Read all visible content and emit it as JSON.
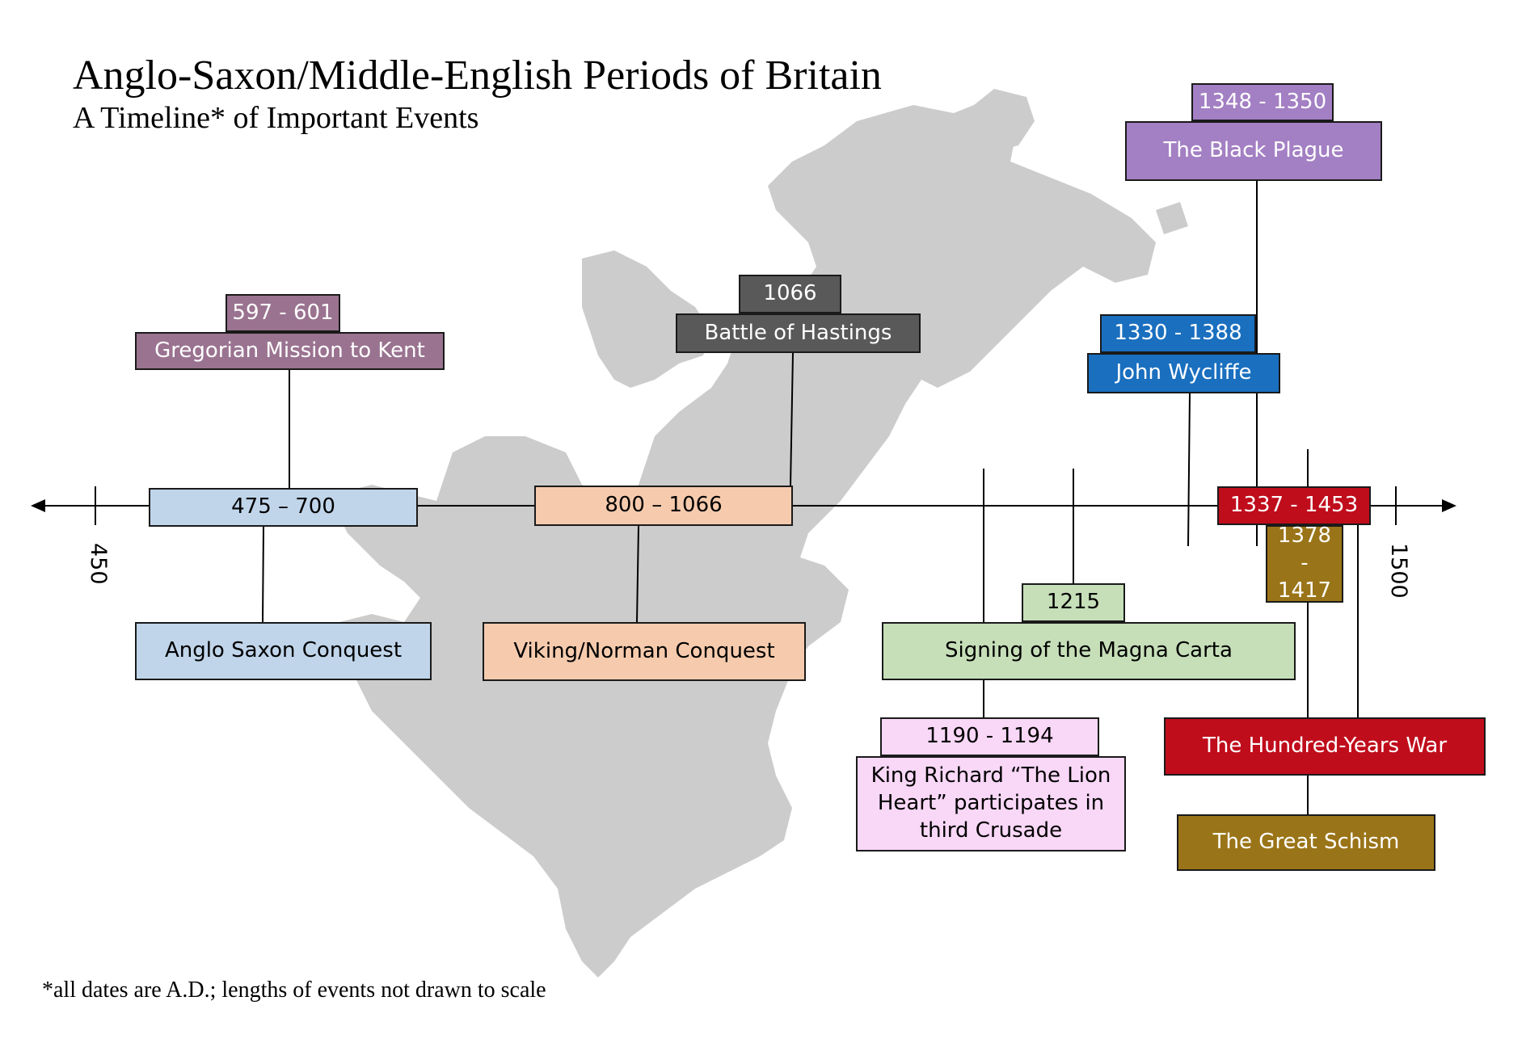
{
  "title": "Anglo-Saxon/Middle-English Periods of Britain",
  "subtitle": "A Timeline* of Important Events",
  "footnote": "*all dates are A.D.; lengths of events not drawn to scale",
  "axis": {
    "start_label": "450",
    "end_label": "1500"
  },
  "events": {
    "anglo_saxon_period": "475 – 700",
    "anglo_saxon_conquest": "Anglo Saxon Conquest",
    "gregorian_dates": "597 - 601",
    "gregorian_mission": "Gregorian Mission to Kent",
    "viking_period": "800 – 1066",
    "viking_conquest": "Viking/Norman Conquest",
    "hastings_date": "1066",
    "hastings": "Battle of Hastings",
    "magna_carta_date": "1215",
    "magna_carta": "Signing of the Magna Carta",
    "richard_dates": "1190 - 1194",
    "richard": "King Richard “The Lion Heart” participates in third Crusade",
    "wycliffe_dates": "1330 - 1388",
    "wycliffe": "John Wycliffe",
    "plague_dates": "1348 - 1350",
    "plague": "The Black Plague",
    "hundred_years_dates": "1337 - 1453",
    "hundred_years": "The Hundred-Years War",
    "schism_dates": "1378 - 1417",
    "schism": "The Great Schism"
  },
  "colors": {
    "map": "#cccccc",
    "anglo_saxon": "#c0d5ea",
    "gregorian": "#9a7390",
    "viking": "#f6cbad",
    "hastings": "#595959",
    "magna_carta": "#c6dfb9",
    "richard": "#f9d7f7",
    "wycliffe": "#1a6fbf",
    "plague": "#a37fc3",
    "hundred_years": "#c00d1c",
    "schism": "#9a7418"
  }
}
